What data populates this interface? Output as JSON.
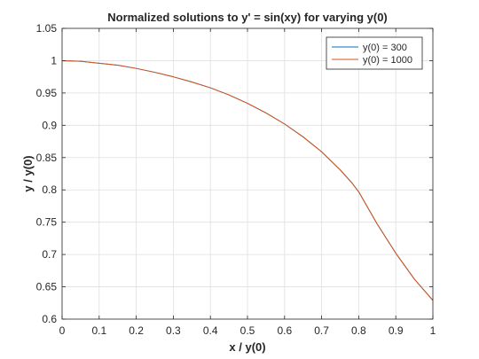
{
  "chart_data": {
    "type": "line",
    "title": "Normalized solutions to y' = sin(xy) for varying y(0)",
    "xlabel": "x / y(0)",
    "ylabel": "y / y(0)",
    "xlim": [
      0,
      1
    ],
    "ylim": [
      0.6,
      1.05
    ],
    "xticks": [
      "0",
      "0.1",
      "0.2",
      "0.3",
      "0.4",
      "0.5",
      "0.6",
      "0.7",
      "0.8",
      "0.9",
      "1"
    ],
    "yticks": [
      "0.6",
      "0.65",
      "0.7",
      "0.75",
      "0.8",
      "0.85",
      "0.9",
      "0.95",
      "1",
      "1.05"
    ],
    "grid": true,
    "legend_position": "top-right",
    "series": [
      {
        "name": "y(0) = 300",
        "color": "#0072BD",
        "x": [
          0,
          0.05,
          0.1,
          0.15,
          0.2,
          0.25,
          0.3,
          0.35,
          0.4,
          0.45,
          0.5,
          0.55,
          0.6,
          0.65,
          0.7,
          0.75,
          0.78,
          0.8,
          0.85,
          0.9,
          0.95,
          1.0
        ],
        "y": [
          1.0,
          0.999,
          0.996,
          0.993,
          0.988,
          0.982,
          0.975,
          0.967,
          0.958,
          0.947,
          0.934,
          0.919,
          0.902,
          0.882,
          0.859,
          0.831,
          0.812,
          0.797,
          0.747,
          0.702,
          0.662,
          0.629
        ]
      },
      {
        "name": "y(0) = 1000",
        "color": "#D95319",
        "x": [
          0,
          0.05,
          0.1,
          0.15,
          0.2,
          0.25,
          0.3,
          0.35,
          0.4,
          0.45,
          0.5,
          0.55,
          0.6,
          0.65,
          0.7,
          0.75,
          0.78,
          0.8,
          0.85,
          0.9,
          0.95,
          1.0
        ],
        "y": [
          1.0,
          0.999,
          0.996,
          0.993,
          0.988,
          0.982,
          0.975,
          0.967,
          0.958,
          0.947,
          0.934,
          0.919,
          0.902,
          0.882,
          0.859,
          0.831,
          0.812,
          0.797,
          0.747,
          0.702,
          0.662,
          0.629
        ]
      }
    ]
  }
}
